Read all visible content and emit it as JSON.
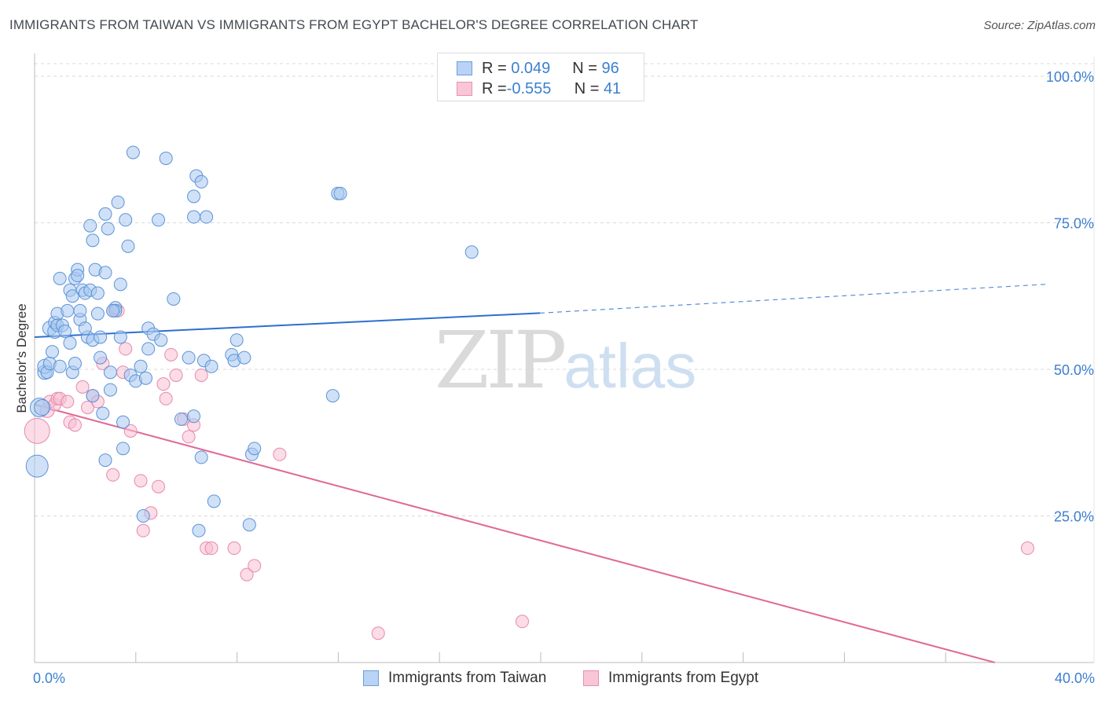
{
  "title": "IMMIGRANTS FROM TAIWAN VS IMMIGRANTS FROM EGYPT BACHELOR'S DEGREE CORRELATION CHART",
  "source": "Source: ZipAtlas.com",
  "watermark": {
    "zip": "ZIP",
    "atlas": "atlas"
  },
  "legend_top": {
    "rows": [
      {
        "r_label": "R = ",
        "r_value": "0.049",
        "n_label": "N = ",
        "n_value": "96"
      },
      {
        "r_label": "R = ",
        "r_value": "-0.555",
        "n_label": "N = ",
        "n_value": "41"
      }
    ]
  },
  "legend_bottom": {
    "items": [
      {
        "label": "Immigrants from Taiwan"
      },
      {
        "label": "Immigrants from Egypt"
      }
    ]
  },
  "colors": {
    "taiwan_fill": "#a9c8f0",
    "taiwan_stroke": "#5b93d6",
    "taiwan_line": "#2d6fcf",
    "egypt_fill": "#f7c0d3",
    "egypt_stroke": "#e58aac",
    "egypt_line": "#e06a98",
    "axis_text": "#3c7fd0",
    "grid": "#d9d9d9"
  },
  "chart_data": {
    "type": "scatter",
    "title": "IMMIGRANTS FROM TAIWAN VS IMMIGRANTS FROM EGYPT BACHELOR'S DEGREE CORRELATION CHART",
    "xlabel": "",
    "ylabel": "Bachelor's Degree",
    "xlim": [
      0,
      40
    ],
    "ylim": [
      0,
      100
    ],
    "x_tick_labels": [
      {
        "value": 0,
        "label": "0.0%"
      },
      {
        "value": 40,
        "label": "40.0%"
      }
    ],
    "x_minor_ticks": [
      4,
      8,
      12,
      16,
      20,
      24,
      28,
      32,
      36
    ],
    "y_ticks": [
      {
        "value": 25,
        "label": "25.0%"
      },
      {
        "value": 50,
        "label": "50.0%"
      },
      {
        "value": 75,
        "label": "75.0%"
      },
      {
        "value": 100,
        "label": "100.0%"
      }
    ],
    "grid": true,
    "series": [
      {
        "name": "Immigrants from Taiwan",
        "R": 0.049,
        "N": 96,
        "trend": {
          "x0": 0,
          "y0": 55.5,
          "x1": 20,
          "y1": 59.6,
          "dash_to_x": 40,
          "dash_to_y": 64.5
        },
        "points": [
          [
            0.1,
            33.5,
            14
          ],
          [
            0.2,
            43.5,
            12
          ],
          [
            0.3,
            43.5,
            10
          ],
          [
            0.4,
            49.5,
            9
          ],
          [
            0.4,
            50.5,
            9
          ],
          [
            0.5,
            49.5,
            8
          ],
          [
            0.6,
            51.0,
            8
          ],
          [
            0.6,
            57.0,
            9
          ],
          [
            0.7,
            53.0,
            8
          ],
          [
            0.8,
            56.5,
            9
          ],
          [
            0.8,
            58.0,
            8
          ],
          [
            0.9,
            59.5,
            8
          ],
          [
            0.9,
            57.5,
            8
          ],
          [
            1.0,
            65.5,
            8
          ],
          [
            1.0,
            50.5,
            8
          ],
          [
            1.1,
            57.5,
            8
          ],
          [
            1.2,
            56.5,
            8
          ],
          [
            1.3,
            60.0,
            8
          ],
          [
            1.4,
            63.5,
            8
          ],
          [
            1.4,
            54.5,
            8
          ],
          [
            1.5,
            49.5,
            8
          ],
          [
            1.6,
            65.5,
            8
          ],
          [
            1.6,
            51.0,
            8
          ],
          [
            1.7,
            67.0,
            8
          ],
          [
            1.7,
            66.0,
            8
          ],
          [
            1.8,
            58.5,
            8
          ],
          [
            1.8,
            60.0,
            8
          ],
          [
            1.9,
            63.5,
            8
          ],
          [
            2.0,
            63.0,
            8
          ],
          [
            2.1,
            55.5,
            8
          ],
          [
            2.2,
            74.5,
            8
          ],
          [
            2.2,
            63.5,
            8
          ],
          [
            2.3,
            55.0,
            8
          ],
          [
            2.3,
            45.5,
            8
          ],
          [
            2.3,
            72.0,
            8
          ],
          [
            2.4,
            67.0,
            8
          ],
          [
            2.5,
            63.0,
            8
          ],
          [
            2.5,
            59.5,
            8
          ],
          [
            2.6,
            52.0,
            8
          ],
          [
            2.6,
            55.5,
            8
          ],
          [
            2.7,
            42.5,
            8
          ],
          [
            2.8,
            76.5,
            8
          ],
          [
            2.8,
            66.5,
            8
          ],
          [
            2.8,
            34.5,
            8
          ],
          [
            2.9,
            74.0,
            8
          ],
          [
            3.0,
            46.5,
            8
          ],
          [
            3.0,
            49.5,
            8
          ],
          [
            3.2,
            60.5,
            8
          ],
          [
            3.2,
            60.0,
            8
          ],
          [
            3.3,
            78.5,
            8
          ],
          [
            3.4,
            64.5,
            8
          ],
          [
            3.4,
            55.5,
            8
          ],
          [
            3.5,
            41.0,
            8
          ],
          [
            3.5,
            36.5,
            8
          ],
          [
            3.6,
            75.5,
            8
          ],
          [
            3.7,
            71.0,
            8
          ],
          [
            3.8,
            49.0,
            8
          ],
          [
            3.9,
            87.0,
            8
          ],
          [
            4.0,
            48.0,
            8
          ],
          [
            4.2,
            50.5,
            8
          ],
          [
            4.3,
            25.0,
            8
          ],
          [
            4.4,
            48.5,
            8
          ],
          [
            4.5,
            53.5,
            8
          ],
          [
            4.5,
            57.0,
            8
          ],
          [
            4.7,
            56.0,
            8
          ],
          [
            4.9,
            75.5,
            8
          ],
          [
            5.0,
            55.0,
            8
          ],
          [
            5.2,
            86.0,
            8
          ],
          [
            5.5,
            62.0,
            8
          ],
          [
            5.8,
            41.5,
            8
          ],
          [
            6.1,
            52.0,
            8
          ],
          [
            6.3,
            76.0,
            8
          ],
          [
            6.3,
            79.5,
            8
          ],
          [
            6.3,
            42.0,
            8
          ],
          [
            6.4,
            83.0,
            8
          ],
          [
            6.5,
            22.5,
            8
          ],
          [
            6.6,
            35.0,
            8
          ],
          [
            6.6,
            82.0,
            8
          ],
          [
            6.7,
            51.5,
            8
          ],
          [
            6.8,
            76.0,
            8
          ],
          [
            7.0,
            50.5,
            8
          ],
          [
            7.1,
            27.5,
            8
          ],
          [
            7.8,
            52.5,
            8
          ],
          [
            7.9,
            51.5,
            8
          ],
          [
            8.0,
            55.0,
            8
          ],
          [
            8.3,
            52.0,
            8
          ],
          [
            8.5,
            23.5,
            8
          ],
          [
            8.6,
            35.5,
            8
          ],
          [
            8.7,
            36.5,
            8
          ],
          [
            11.8,
            45.5,
            8
          ],
          [
            12.0,
            80.0,
            8
          ],
          [
            12.1,
            80.0,
            8
          ],
          [
            17.3,
            70.0,
            8
          ],
          [
            1.5,
            62.5,
            8
          ],
          [
            2.0,
            57.0,
            8
          ],
          [
            3.1,
            60.0,
            8
          ]
        ]
      },
      {
        "name": "Immigrants from Egypt",
        "R": -0.555,
        "N": 41,
        "trend": {
          "x0": 0,
          "y0": 44.0,
          "x1": 38,
          "y1": 0
        },
        "points": [
          [
            0.1,
            39.5,
            16
          ],
          [
            0.5,
            43.0,
            9
          ],
          [
            0.6,
            44.5,
            8
          ],
          [
            0.8,
            44.0,
            8
          ],
          [
            0.9,
            45.0,
            8
          ],
          [
            1.0,
            45.0,
            8
          ],
          [
            1.3,
            44.5,
            8
          ],
          [
            1.4,
            41.0,
            8
          ],
          [
            1.6,
            40.5,
            8
          ],
          [
            1.9,
            47.0,
            8
          ],
          [
            2.1,
            43.5,
            8
          ],
          [
            2.3,
            45.5,
            8
          ],
          [
            2.5,
            44.5,
            8
          ],
          [
            2.7,
            51.0,
            8
          ],
          [
            3.1,
            60.0,
            8
          ],
          [
            3.1,
            32.0,
            8
          ],
          [
            3.3,
            60.0,
            8
          ],
          [
            3.5,
            49.5,
            8
          ],
          [
            3.6,
            53.5,
            8
          ],
          [
            3.8,
            39.5,
            8
          ],
          [
            4.2,
            31.0,
            8
          ],
          [
            4.3,
            22.5,
            8
          ],
          [
            4.6,
            25.5,
            8
          ],
          [
            4.9,
            30.0,
            8
          ],
          [
            5.1,
            47.5,
            8
          ],
          [
            5.2,
            45.0,
            8
          ],
          [
            5.4,
            52.5,
            8
          ],
          [
            5.6,
            49.0,
            8
          ],
          [
            5.9,
            41.5,
            8
          ],
          [
            6.1,
            38.5,
            8
          ],
          [
            6.3,
            40.5,
            8
          ],
          [
            6.6,
            49.0,
            8
          ],
          [
            6.8,
            19.5,
            8
          ],
          [
            7.0,
            19.5,
            8
          ],
          [
            7.9,
            19.5,
            8
          ],
          [
            8.4,
            15.0,
            8
          ],
          [
            8.7,
            16.5,
            8
          ],
          [
            9.7,
            35.5,
            8
          ],
          [
            13.6,
            5.0,
            8
          ],
          [
            19.3,
            7.0,
            8
          ],
          [
            39.3,
            19.5,
            8
          ]
        ]
      }
    ]
  }
}
